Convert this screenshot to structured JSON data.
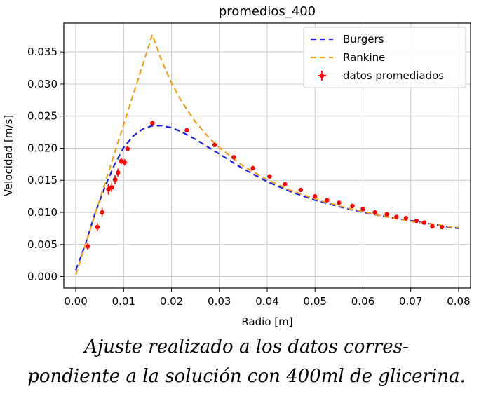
{
  "chart_data": {
    "type": "line",
    "title": "promedios_400",
    "xlabel": "Radio [m]",
    "ylabel": "Velocidad [m/s]",
    "xlim": [
      -0.0025,
      0.0825
    ],
    "ylim": [
      -0.0018,
      0.0395
    ],
    "xticks": [
      0.0,
      0.01,
      0.02,
      0.03,
      0.04,
      0.05,
      0.06,
      0.07,
      0.08
    ],
    "xtick_labels": [
      "0.00",
      "0.01",
      "0.02",
      "0.03",
      "0.04",
      "0.05",
      "0.06",
      "0.07",
      "0.08"
    ],
    "yticks": [
      0.0,
      0.005,
      0.01,
      0.015,
      0.02,
      0.025,
      0.03,
      0.035
    ],
    "ytick_labels": [
      "0.000",
      "0.005",
      "0.010",
      "0.015",
      "0.020",
      "0.025",
      "0.030",
      "0.035"
    ],
    "grid": true,
    "legend_position": "top-right",
    "series": [
      {
        "name": "Burgers",
        "style": "dashed",
        "color": "#1f1fe8",
        "x": [
          0.0,
          0.002,
          0.004,
          0.006,
          0.008,
          0.01,
          0.012,
          0.014,
          0.016,
          0.018,
          0.02,
          0.022,
          0.025,
          0.028,
          0.03,
          0.035,
          0.04,
          0.045,
          0.05,
          0.055,
          0.06,
          0.065,
          0.07,
          0.075,
          0.08
        ],
        "y": [
          0.001,
          0.005,
          0.0098,
          0.0138,
          0.0173,
          0.0201,
          0.0219,
          0.023,
          0.0235,
          0.0235,
          0.0232,
          0.0226,
          0.0214,
          0.02,
          0.0191,
          0.0168,
          0.0148,
          0.0132,
          0.0119,
          0.0109,
          0.01,
          0.0093,
          0.0087,
          0.0081,
          0.0075
        ]
      },
      {
        "name": "Rankine",
        "style": "dashed",
        "color": "#f0a020",
        "x": [
          0.0,
          0.016,
          0.018,
          0.02,
          0.022,
          0.025,
          0.028,
          0.03,
          0.035,
          0.04,
          0.045,
          0.05,
          0.055,
          0.06,
          0.065,
          0.07,
          0.075,
          0.08
        ],
        "y": [
          0.0003,
          0.0377,
          0.0335,
          0.0302,
          0.0274,
          0.0241,
          0.0215,
          0.0201,
          0.0172,
          0.0151,
          0.0134,
          0.0121,
          0.011,
          0.0101,
          0.0093,
          0.0086,
          0.0081,
          0.0076
        ]
      },
      {
        "name": "datos promediados",
        "style": "markers-errorbar",
        "color": "#ff0000",
        "x": [
          0.0025,
          0.0045,
          0.0055,
          0.0068,
          0.0075,
          0.0082,
          0.0088,
          0.0095,
          0.0102,
          0.0108,
          0.016,
          0.0232,
          0.029,
          0.033,
          0.037,
          0.0405,
          0.0437,
          0.047,
          0.05,
          0.0525,
          0.055,
          0.0578,
          0.06,
          0.0625,
          0.065,
          0.067,
          0.069,
          0.0712,
          0.0728,
          0.0745,
          0.0765
        ],
        "y": [
          0.0047,
          0.0077,
          0.01,
          0.0136,
          0.0139,
          0.0151,
          0.0162,
          0.018,
          0.0178,
          0.0199,
          0.0239,
          0.0228,
          0.0205,
          0.0186,
          0.0169,
          0.0156,
          0.0144,
          0.0135,
          0.0125,
          0.0119,
          0.0115,
          0.011,
          0.0105,
          0.01,
          0.0097,
          0.0093,
          0.0091,
          0.0087,
          0.0084,
          0.0078,
          0.0077
        ],
        "yerr": [
          0.0004,
          0.0005,
          0.0006,
          0.0007,
          0.0006,
          0.0006,
          0.0005,
          0.0004,
          0.0004,
          0.0003,
          0.0003,
          0.0002,
          0.0002,
          0.0002,
          0.0002,
          0.0002,
          0.0002,
          0.0002,
          0.0002,
          0.0002,
          0.0002,
          0.0002,
          0.0002,
          0.0002,
          0.0002,
          0.0002,
          0.0002,
          0.0002,
          0.0002,
          0.0002,
          0.0002
        ]
      }
    ]
  },
  "caption": {
    "line1": "Ajuste realizado a los datos corres-",
    "line2": "pondiente a la solución con 400ml de glicerina."
  }
}
